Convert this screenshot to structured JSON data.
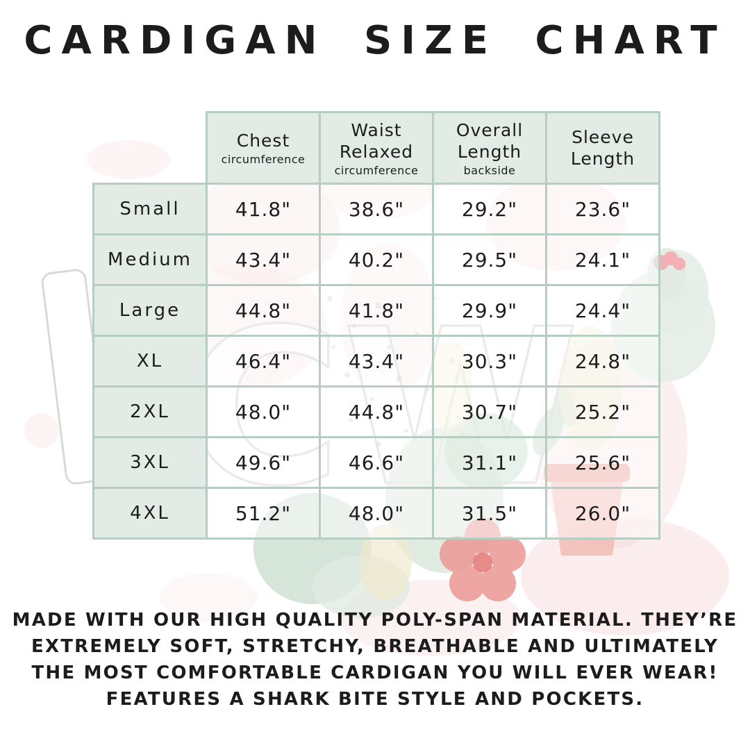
{
  "page": {
    "title": "CARDIGAN SIZE CHART"
  },
  "colors": {
    "page_bg": "#ffffff",
    "text": "#1c1c1c",
    "table_border": "#b6cec1",
    "cell_bg": "#e2ebe5",
    "wash_pink": "#f6d7d8",
    "wash_red": "#ec9794",
    "wash_sage": "#d8e6da",
    "wash_yellow": "#efe9cf"
  },
  "table": {
    "columns": [
      {
        "label_lines": [
          "Chest"
        ],
        "sublabel": "circumference"
      },
      {
        "label_lines": [
          "Waist",
          "Relaxed"
        ],
        "sublabel": "circumference"
      },
      {
        "label_lines": [
          "Overall",
          "Length"
        ],
        "sublabel": "backside"
      },
      {
        "label_lines": [
          "Sleeve",
          "Length"
        ],
        "sublabel": ""
      }
    ],
    "rows": [
      {
        "size": "Small",
        "values": [
          "41.8\"",
          "38.6\"",
          "29.2\"",
          "23.6\""
        ]
      },
      {
        "size": "Medium",
        "values": [
          "43.4\"",
          "40.2\"",
          "29.5\"",
          "24.1\""
        ]
      },
      {
        "size": "Large",
        "values": [
          "44.8\"",
          "41.8\"",
          "29.9\"",
          "24.4\""
        ]
      },
      {
        "size": "XL",
        "values": [
          "46.4\"",
          "43.4\"",
          "30.3\"",
          "24.8\""
        ]
      },
      {
        "size": "2XL",
        "values": [
          "48.0\"",
          "44.8\"",
          "30.7\"",
          "25.2\""
        ]
      },
      {
        "size": "3XL",
        "values": [
          "49.6\"",
          "46.6\"",
          "31.1\"",
          "25.6\""
        ]
      },
      {
        "size": "4XL",
        "values": [
          "51.2\"",
          "48.0\"",
          "31.5\"",
          "26.0\""
        ]
      }
    ]
  },
  "description": {
    "lines": [
      "MADE WITH OUR HIGH QUALITY POLY-SPAN MATERIAL. THEY’RE",
      "EXTREMELY SOFT, STRETCHY, BREATHABLE AND ULTIMATELY",
      "THE MOST COMFORTABLE CARDIGAN YOU WILL EVER WEAR!",
      "FEATURES A SHARK BITE STYLE AND POCKETS."
    ]
  },
  "watermark": {
    "letters": "CW"
  }
}
